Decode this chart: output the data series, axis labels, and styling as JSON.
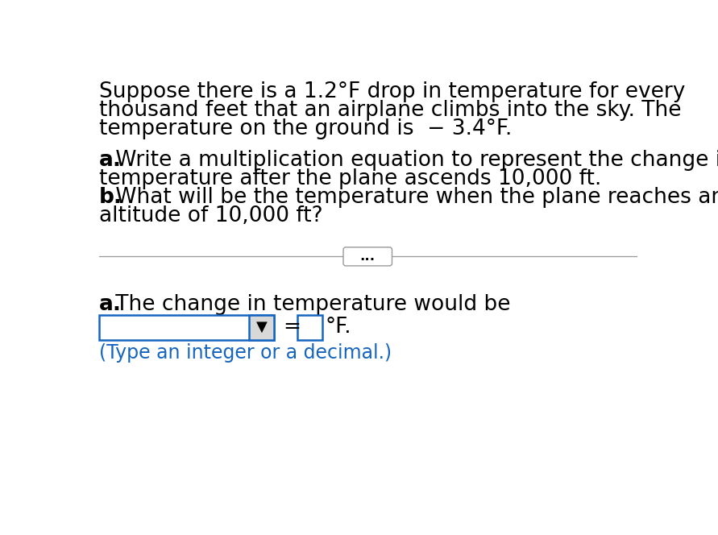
{
  "background_color": "#ffffff",
  "paragraph1_line1": "Suppose there is a 1.2°F drop in temperature for every",
  "paragraph1_line2": "thousand feet that an airplane climbs into the sky. The",
  "paragraph1_line3": "temperature on the ground is  − 3.4°F.",
  "paragraph2_line1_bold": "a.",
  "paragraph2_line1_rest": " Write a multiplication equation to represent the change in",
  "paragraph2_line2": "temperature after the plane ascends 10,000 ft.",
  "paragraph2_line3_bold": "b.",
  "paragraph2_line3_rest": " What will be the temperature when the plane reaches an",
  "paragraph2_line4": "altitude of 10,000 ft?",
  "divider_dots": "...",
  "answer_label_bold": "a.",
  "answer_label_rest": " The change in temperature would be",
  "dropdown_symbol": "▼",
  "equals_sign": "=",
  "degree_symbol": "°F.",
  "hint_text": "(Type an integer or a decimal.)",
  "text_color": "#000000",
  "hint_color": "#1565c0",
  "box_border_color": "#1565c0",
  "divider_color": "#999999",
  "dropdown_bg": "#d8d8d8",
  "font_size_main": 19,
  "font_size_hint": 17,
  "font_size_divider": 12,
  "font_size_dropdown": 13
}
